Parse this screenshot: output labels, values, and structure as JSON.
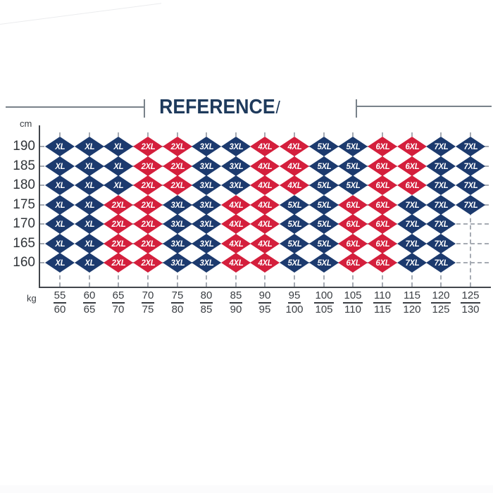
{
  "title": {
    "text": "REFERENCE",
    "slash": "/"
  },
  "colors": {
    "navy": "#1c3a6e",
    "red": "#d41f3c",
    "title_navy": "#1e3a5c",
    "grid_dash": "#a6abb3",
    "axis": "#42464b",
    "rule_grey": "#79828a",
    "label_text": "#3a3e43"
  },
  "chart_data": {
    "type": "heatmap",
    "title": "REFERENCE",
    "legend_position": "none",
    "grid": "dashed",
    "y_axis": {
      "unit": "cm",
      "values": [
        "190",
        "185",
        "180",
        "175",
        "170",
        "165",
        "160"
      ]
    },
    "x_axis": {
      "unit": "kg",
      "labels": [
        {
          "top": "55",
          "bottom": "60"
        },
        {
          "top": "60",
          "bottom": "65"
        },
        {
          "top": "65",
          "bottom": "70"
        },
        {
          "top": "70",
          "bottom": "75"
        },
        {
          "top": "75",
          "bottom": "80"
        },
        {
          "top": "80",
          "bottom": "85"
        },
        {
          "top": "85",
          "bottom": "90"
        },
        {
          "top": "90",
          "bottom": "95"
        },
        {
          "top": "95",
          "bottom": "100"
        },
        {
          "top": "100",
          "bottom": "105"
        },
        {
          "top": "105",
          "bottom": "110"
        },
        {
          "top": "110",
          "bottom": "115"
        },
        {
          "top": "115",
          "bottom": "120"
        },
        {
          "top": "120",
          "bottom": "125"
        },
        {
          "top": "125",
          "bottom": "130"
        }
      ]
    },
    "rows": [
      {
        "height_cm": "190",
        "sizes": [
          "XL",
          "XL",
          "XL",
          "2XL",
          "2XL",
          "3XL",
          "3XL",
          "4XL",
          "4XL",
          "5XL",
          "5XL",
          "6XL",
          "6XL",
          "7XL",
          "7XL"
        ]
      },
      {
        "height_cm": "185",
        "sizes": [
          "XL",
          "XL",
          "XL",
          "2XL",
          "2XL",
          "3XL",
          "3XL",
          "4XL",
          "4XL",
          "5XL",
          "5XL",
          "6XL",
          "6XL",
          "7XL",
          "7XL"
        ]
      },
      {
        "height_cm": "180",
        "sizes": [
          "XL",
          "XL",
          "XL",
          "2XL",
          "2XL",
          "3XL",
          "3XL",
          "4XL",
          "4XL",
          "5XL",
          "5XL",
          "6XL",
          "6XL",
          "7XL",
          "7XL"
        ]
      },
      {
        "height_cm": "175",
        "sizes": [
          "XL",
          "XL",
          "2XL",
          "2XL",
          "3XL",
          "3XL",
          "4XL",
          "4XL",
          "5XL",
          "5XL",
          "6XL",
          "6XL",
          "7XL",
          "7XL",
          "7XL"
        ]
      },
      {
        "height_cm": "170",
        "sizes": [
          "XL",
          "XL",
          "2XL",
          "2XL",
          "3XL",
          "3XL",
          "4XL",
          "4XL",
          "5XL",
          "5XL",
          "6XL",
          "6XL",
          "7XL",
          "7XL",
          null
        ]
      },
      {
        "height_cm": "165",
        "sizes": [
          "XL",
          "XL",
          "2XL",
          "2XL",
          "3XL",
          "3XL",
          "4XL",
          "4XL",
          "5XL",
          "5XL",
          "6XL",
          "6XL",
          "7XL",
          "7XL",
          null
        ]
      },
      {
        "height_cm": "160",
        "sizes": [
          "XL",
          "XL",
          "2XL",
          "2XL",
          "3XL",
          "3XL",
          "4XL",
          "4XL",
          "5XL",
          "5XL",
          "6XL",
          "6XL",
          "7XL",
          "7XL",
          null
        ]
      }
    ],
    "size_colors": {
      "XL": "#1c3a6e",
      "2XL": "#d41f3c",
      "3XL": "#1c3a6e",
      "4XL": "#d41f3c",
      "5XL": "#1c3a6e",
      "6XL": "#d41f3c",
      "7XL": "#1c3a6e"
    }
  }
}
